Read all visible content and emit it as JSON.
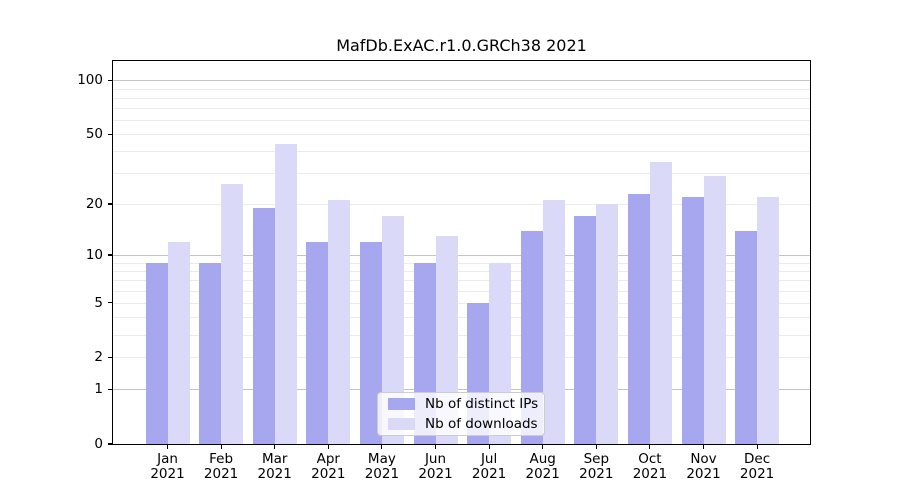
{
  "chart_data": {
    "type": "bar",
    "title": "MafDb.ExAC.r1.0.GRCh38 2021",
    "categories": [
      "Jan",
      "Feb",
      "Mar",
      "Apr",
      "May",
      "Jun",
      "Jul",
      "Aug",
      "Sep",
      "Oct",
      "Nov",
      "Dec"
    ],
    "category_year": "2021",
    "series": [
      {
        "name": "Nb of distinct IPs",
        "color": "#a7a7f0",
        "values": [
          9,
          9,
          19,
          12,
          12,
          9,
          5,
          14,
          17,
          23,
          22,
          14
        ]
      },
      {
        "name": "Nb of downloads",
        "color": "#dadaf8",
        "values": [
          12,
          26,
          44,
          21,
          17,
          13,
          9,
          21,
          20,
          35,
          29,
          22
        ]
      }
    ],
    "y_scale": "log1p",
    "y_ticks": [
      0,
      1,
      2,
      5,
      10,
      20,
      50,
      100
    ],
    "y_major_gridlines": [
      1,
      10,
      100
    ],
    "y_minor_gridlines": [
      2,
      3,
      4,
      5,
      6,
      7,
      8,
      9,
      20,
      30,
      40,
      50,
      60,
      70,
      80,
      90
    ],
    "ylim": [
      0,
      128
    ],
    "xlabel": "",
    "ylabel": "",
    "grid": true,
    "legend_position": "lower center",
    "colors": {
      "axis": "#000000",
      "major_grid": "#c4c4c4",
      "minor_grid": "#ebebeb",
      "background": "#ffffff"
    }
  }
}
